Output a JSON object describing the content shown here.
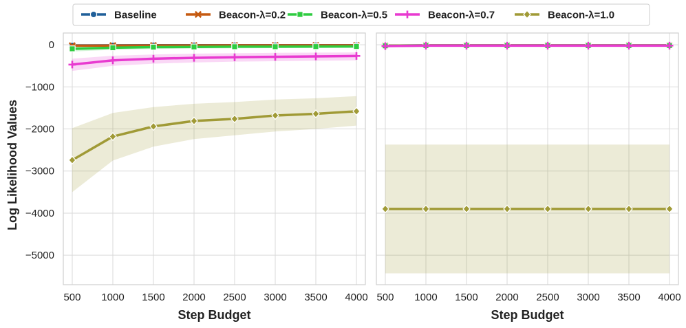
{
  "chart_data": {
    "type": "line",
    "ylabel": "Log Likelihood Values",
    "legend": {
      "placement": "top-center",
      "entries": [
        "Baseline",
        "Beacon-λ=0.2",
        "Beacon-λ=0.5",
        "Beacon-λ=0.7",
        "Beacon-λ=1.0"
      ]
    },
    "grid": true,
    "panels": [
      {
        "xlabel": "Step Budget",
        "x": [
          500,
          1000,
          1500,
          2000,
          2500,
          3000,
          3500,
          4000
        ],
        "xticks": [
          "500",
          "1000",
          "1500",
          "2000",
          "2500",
          "3000",
          "3500",
          "4000"
        ],
        "xlim": [
          390,
          4110
        ],
        "ylim": [
          -5700,
          280
        ],
        "yticks": [
          0,
          -1000,
          -2000,
          -3000,
          -4000,
          -5000
        ],
        "ytick_labels": [
          "0",
          "−1000",
          "−2000",
          "−3000",
          "−4000",
          "−5000"
        ],
        "series": [
          {
            "name": "Baseline",
            "color": "#1f5f99",
            "marker": "circle",
            "values": [
              -15,
              -12,
              -10,
              -10,
              -10,
              -10,
              -10,
              -10
            ],
            "band": [
              [
                -40,
                5
              ],
              [
                -30,
                5
              ],
              [
                -25,
                5
              ],
              [
                -25,
                5
              ],
              [
                -25,
                5
              ],
              [
                -25,
                5
              ],
              [
                -25,
                5
              ],
              [
                -25,
                5
              ]
            ]
          },
          {
            "name": "Beacon-λ=0.2",
            "color": "#c55a11",
            "marker": "x",
            "values": [
              -20,
              -18,
              -16,
              -16,
              -15,
              -15,
              -15,
              -15
            ],
            "band": [
              [
                -50,
                5
              ],
              [
                -40,
                5
              ],
              [
                -35,
                5
              ],
              [
                -35,
                5
              ],
              [
                -35,
                5
              ],
              [
                -35,
                5
              ],
              [
                -35,
                5
              ],
              [
                -35,
                5
              ]
            ]
          },
          {
            "name": "Beacon-λ=0.5",
            "color": "#2ecc40",
            "marker": "square",
            "values": [
              -95,
              -70,
              -55,
              -50,
              -45,
              -45,
              -42,
              -40
            ],
            "band": [
              [
                -160,
                -40
              ],
              [
                -120,
                -30
              ],
              [
                -100,
                -25
              ],
              [
                -90,
                -20
              ],
              [
                -85,
                -20
              ],
              [
                -80,
                -20
              ],
              [
                -75,
                -20
              ],
              [
                -70,
                -20
              ]
            ]
          },
          {
            "name": "Beacon-λ=0.7",
            "color": "#e83ad0",
            "marker": "plus",
            "values": [
              -470,
              -370,
              -330,
              -310,
              -295,
              -285,
              -275,
              -265
            ],
            "band": [
              [
                -620,
                -330
              ],
              [
                -500,
                -260
              ],
              [
                -450,
                -230
              ],
              [
                -420,
                -210
              ],
              [
                -400,
                -200
              ],
              [
                -390,
                -190
              ],
              [
                -380,
                -185
              ],
              [
                -370,
                -180
              ]
            ]
          },
          {
            "name": "Beacon-λ=1.0",
            "color": "#a09a36",
            "marker": "diamond",
            "values": [
              -2740,
              -2180,
              -1940,
              -1810,
              -1760,
              -1680,
              -1640,
              -1580
            ],
            "band": [
              [
                -3500,
                -1980
              ],
              [
                -2750,
                -1620
              ],
              [
                -2420,
                -1480
              ],
              [
                -2240,
                -1400
              ],
              [
                -2150,
                -1360
              ],
              [
                -2060,
                -1300
              ],
              [
                -2000,
                -1270
              ],
              [
                -1920,
                -1220
              ]
            ]
          }
        ]
      },
      {
        "xlabel": "Step Budget",
        "x": [
          500,
          1000,
          1500,
          2000,
          2500,
          3000,
          3500,
          4000
        ],
        "xticks": [
          "500",
          "1000",
          "1500",
          "2000",
          "2500",
          "3000",
          "3500",
          "4000"
        ],
        "xlim": [
          390,
          4110
        ],
        "ylim": [
          -5700,
          280
        ],
        "yticks": [
          0,
          -1000,
          -2000,
          -3000,
          -4000,
          -5000
        ],
        "ytick_labels": [],
        "series": [
          {
            "name": "Baseline",
            "color": "#1f5f99",
            "marker": "circle",
            "values": [
              -20,
              -15,
              -15,
              -15,
              -15,
              -15,
              -15,
              -15
            ],
            "band": [
              [
                -40,
                0
              ],
              [
                -30,
                0
              ],
              [
                -30,
                0
              ],
              [
                -30,
                0
              ],
              [
                -30,
                0
              ],
              [
                -30,
                0
              ],
              [
                -30,
                0
              ],
              [
                -30,
                0
              ]
            ]
          },
          {
            "name": "Beacon-λ=0.2",
            "color": "#c55a11",
            "marker": "x",
            "values": [
              -20,
              -15,
              -15,
              -15,
              -15,
              -15,
              -15,
              -15
            ],
            "band": [
              [
                -40,
                0
              ],
              [
                -30,
                0
              ],
              [
                -30,
                0
              ],
              [
                -30,
                0
              ],
              [
                -30,
                0
              ],
              [
                -30,
                0
              ],
              [
                -30,
                0
              ],
              [
                -30,
                0
              ]
            ]
          },
          {
            "name": "Beacon-λ=0.5",
            "color": "#2ecc40",
            "marker": "square",
            "values": [
              -25,
              -18,
              -18,
              -18,
              -18,
              -18,
              -18,
              -18
            ],
            "band": [
              [
                -45,
                -5
              ],
              [
                -35,
                -5
              ],
              [
                -35,
                -5
              ],
              [
                -35,
                -5
              ],
              [
                -35,
                -5
              ],
              [
                -35,
                -5
              ],
              [
                -35,
                -5
              ],
              [
                -35,
                -5
              ]
            ]
          },
          {
            "name": "Beacon-λ=0.7",
            "color": "#e83ad0",
            "marker": "plus",
            "values": [
              -30,
              -20,
              -20,
              -20,
              -20,
              -20,
              -20,
              -20
            ],
            "band": [
              [
                -50,
                -10
              ],
              [
                -40,
                -5
              ],
              [
                -40,
                -5
              ],
              [
                -40,
                -5
              ],
              [
                -40,
                -5
              ],
              [
                -40,
                -5
              ],
              [
                -40,
                -5
              ],
              [
                -40,
                -5
              ]
            ]
          },
          {
            "name": "Beacon-λ=1.0",
            "color": "#a09a36",
            "marker": "diamond",
            "values": [
              -3900,
              -3900,
              -3900,
              -3900,
              -3900,
              -3900,
              -3900,
              -3900
            ],
            "band": [
              [
                -5430,
                -2370
              ],
              [
                -5430,
                -2370
              ],
              [
                -5430,
                -2370
              ],
              [
                -5430,
                -2370
              ],
              [
                -5430,
                -2370
              ],
              [
                -5430,
                -2370
              ],
              [
                -5430,
                -2370
              ],
              [
                -5430,
                -2370
              ]
            ]
          }
        ]
      }
    ]
  }
}
